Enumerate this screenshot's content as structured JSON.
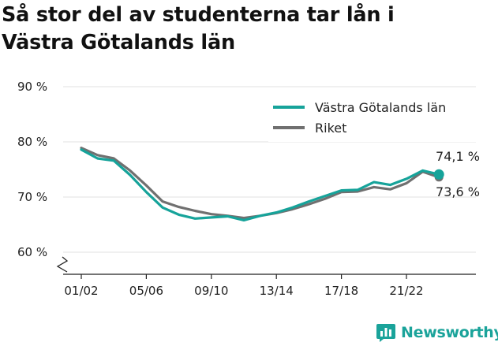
{
  "title_lines": [
    "Så stor del av studenterna tar lån i",
    "Västra Götalands län"
  ],
  "brand": {
    "name": "Newsworthy",
    "icon": "newsworthy-logo-icon"
  },
  "colors": {
    "vastra": "#16a39a",
    "riket": "#707070",
    "grid": "#e2e2e2",
    "axis": "#222222"
  },
  "chart_data": {
    "type": "line",
    "title": "Så stor del av studenterna tar lån i Västra Götalands län",
    "xlabel": "",
    "ylabel": "",
    "ylim": [
      60,
      90
    ],
    "y_ticks": [
      60,
      70,
      80,
      90
    ],
    "y_tick_labels": [
      "60 %",
      "70 %",
      "80 %",
      "90 %"
    ],
    "y_axis_break": true,
    "grid": true,
    "legend_position": "top-right",
    "x": [
      "01/02",
      "02/03",
      "03/04",
      "04/05",
      "05/06",
      "06/07",
      "07/08",
      "08/09",
      "09/10",
      "10/11",
      "11/12",
      "12/13",
      "13/14",
      "14/15",
      "15/16",
      "16/17",
      "17/18",
      "18/19",
      "19/20",
      "20/21",
      "21/22",
      "22/23",
      "23/24"
    ],
    "x_tick_labels": [
      "01/02",
      "05/06",
      "09/10",
      "13/14",
      "17/18",
      "21/22"
    ],
    "series": [
      {
        "name": "Västra Götalands län",
        "color": "#16a39a",
        "values": [
          78.6,
          77.0,
          76.6,
          74.0,
          70.9,
          68.1,
          66.8,
          66.1,
          66.3,
          66.5,
          65.8,
          66.6,
          67.2,
          68.1,
          69.2,
          70.2,
          71.2,
          71.3,
          72.7,
          72.2,
          73.3,
          74.8,
          74.1
        ]
      },
      {
        "name": "Riket",
        "color": "#707070",
        "values": [
          78.9,
          77.6,
          77.0,
          74.8,
          72.1,
          69.2,
          68.2,
          67.5,
          66.9,
          66.6,
          66.2,
          66.6,
          67.1,
          67.8,
          68.7,
          69.7,
          70.9,
          71.0,
          71.8,
          71.4,
          72.5,
          74.6,
          73.6
        ]
      }
    ],
    "end_labels": {
      "vastra": "74,1 %",
      "riket": "73,6 %"
    }
  }
}
